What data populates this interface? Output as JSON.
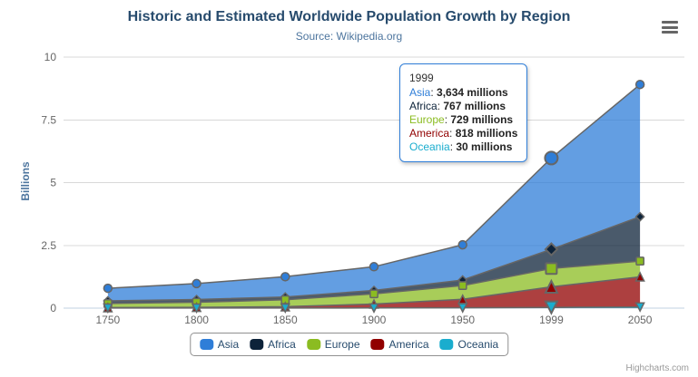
{
  "header": {
    "title": "Historic and Estimated Worldwide Population Growth by Region",
    "subtitle": "Source: Wikipedia.org"
  },
  "chart_data": {
    "type": "area",
    "stacking": "normal",
    "categories": [
      "1750",
      "1800",
      "1850",
      "1900",
      "1950",
      "1999",
      "2050"
    ],
    "series": [
      {
        "name": "Asia",
        "color": "#2f7ed8",
        "marker": "circle",
        "values_millions": [
          502,
          635,
          809,
          947,
          1402,
          3634,
          5268
        ]
      },
      {
        "name": "Africa",
        "color": "#0d233a",
        "marker": "diamond",
        "values_millions": [
          106,
          107,
          111,
          133,
          221,
          767,
          1766
        ]
      },
      {
        "name": "Europe",
        "color": "#8bbc21",
        "marker": "square",
        "values_millions": [
          163,
          203,
          276,
          408,
          547,
          729,
          628
        ]
      },
      {
        "name": "America",
        "color": "#910000",
        "marker": "triangle",
        "values_millions": [
          18,
          31,
          54,
          156,
          339,
          818,
          1201
        ]
      },
      {
        "name": "Oceania",
        "color": "#1aadce",
        "marker": "triangle-down",
        "values_millions": [
          2,
          2,
          2,
          6,
          13,
          30,
          46
        ]
      }
    ],
    "ylabel": "Billions",
    "yticks": [
      0,
      2.5,
      5,
      7.5,
      10
    ],
    "ylim": [
      0,
      10
    ],
    "grid": "horizontal",
    "legend_position": "bottom",
    "hover_category": "1999",
    "hover_category_index": 5,
    "line_color": "#666666",
    "fill_opacity": 0.75
  },
  "tooltip": {
    "header": "1999",
    "rows": [
      {
        "value": "3,634 millions"
      },
      {
        "value": "767 millions"
      },
      {
        "value": "729 millions"
      },
      {
        "value": "818 millions"
      },
      {
        "value": "30 millions"
      }
    ]
  },
  "credits": "Highcharts.com",
  "colors": {
    "title": "#274b6d",
    "subtitle": "#4d759e",
    "axis_labels": "#666666",
    "axis_title": "#4d759e",
    "legend_text": "#274b6d",
    "grid_line": "#d8d8d8",
    "axis_line": "#c0d0e0",
    "series_outline": "#666666",
    "tooltip_border": "#2f7ed8"
  }
}
